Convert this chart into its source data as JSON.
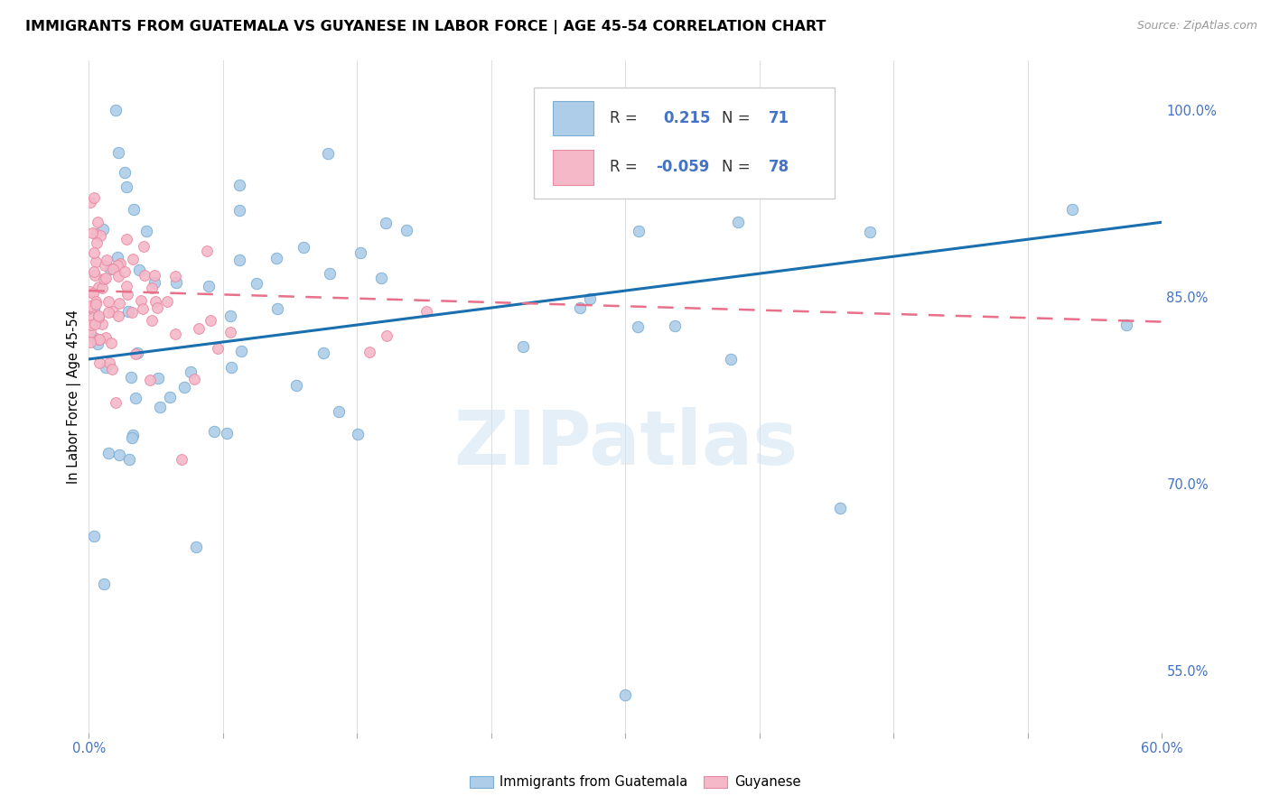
{
  "title": "IMMIGRANTS FROM GUATEMALA VS GUYANESE IN LABOR FORCE | AGE 45-54 CORRELATION CHART",
  "source": "Source: ZipAtlas.com",
  "ylabel": "In Labor Force | Age 45-54",
  "watermark": "ZIPatlas",
  "legend_blue_r": "0.215",
  "legend_blue_n": "71",
  "legend_pink_r": "-0.059",
  "legend_pink_n": "78",
  "legend_label_blue": "Immigrants from Guatemala",
  "legend_label_pink": "Guyanese",
  "blue_color": "#aecde8",
  "pink_color": "#f5b8c8",
  "blue_edge": "#7aadd4",
  "pink_edge": "#e888a0",
  "line_blue": "#1a6faf",
  "line_pink": "#e8708a",
  "xmin": 0.0,
  "xmax": 60.0,
  "ymin": 50.0,
  "ymax": 104.0,
  "yticks": [
    55.0,
    70.0,
    85.0,
    100.0
  ],
  "blue_line_x0": 0.0,
  "blue_line_x1": 60.0,
  "blue_line_y0": 80.0,
  "blue_line_y1": 91.0,
  "pink_line_x0": 0.0,
  "pink_line_x1": 60.0,
  "pink_line_y0": 85.5,
  "pink_line_y1": 83.0,
  "marker_size": 80,
  "blue_lw": 2.2,
  "pink_lw": 1.8,
  "grid_color": "#dddddd",
  "text_color": "#4472C4",
  "title_fontsize": 11.5,
  "tick_fontsize": 10.5,
  "ylabel_fontsize": 10.5,
  "source_fontsize": 9,
  "watermark_fontsize": 60,
  "watermark_color": "#cfe2f3",
  "watermark_alpha": 0.55
}
